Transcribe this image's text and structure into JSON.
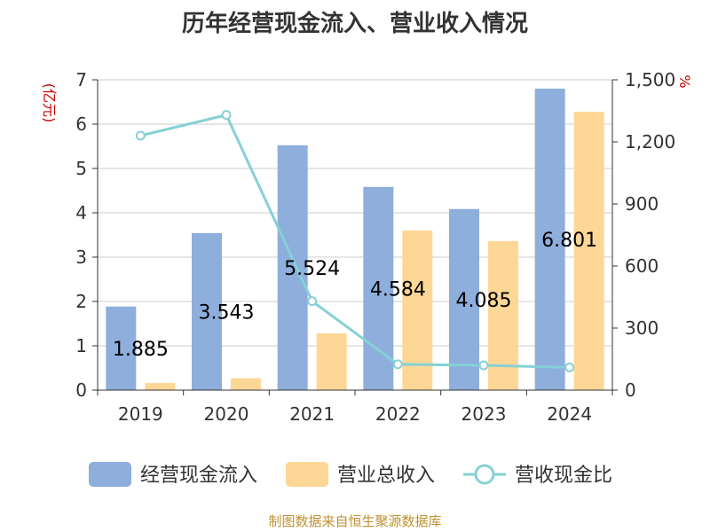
{
  "chart_data": {
    "type": "bar",
    "title": "历年经营现金流入、营业收入情况",
    "categories": [
      "2019",
      "2020",
      "2021",
      "2022",
      "2023",
      "2024"
    ],
    "series": [
      {
        "name": "经营现金流入",
        "type": "bar",
        "axis": "left",
        "color": "#8eaedc",
        "values": [
          1.885,
          3.543,
          5.524,
          4.584,
          4.085,
          6.801
        ],
        "data_labels": [
          "1.885",
          "3.543",
          "5.524",
          "4.584",
          "4.085",
          "6.801"
        ]
      },
      {
        "name": "营业总收入",
        "type": "bar",
        "axis": "left",
        "color": "#fdd795",
        "values": [
          0.16,
          0.27,
          1.28,
          3.6,
          3.36,
          6.28
        ]
      },
      {
        "name": "营收现金比",
        "type": "line",
        "axis": "right",
        "color": "#86d1d6",
        "values": [
          1230,
          1330,
          430,
          125,
          120,
          110
        ]
      }
    ],
    "y_left": {
      "unit_label": "(亿元)",
      "min": 0,
      "max": 7,
      "ticks": [
        "0",
        "1",
        "2",
        "3",
        "4",
        "5",
        "6",
        "7"
      ]
    },
    "y_right": {
      "unit_label": "%",
      "min": 0,
      "max": 1500,
      "ticks": [
        "0",
        "300",
        "600",
        "900",
        "1,200",
        "1,500"
      ]
    },
    "grid": true,
    "legend_position": "bottom"
  },
  "footer": {
    "source": "制图数据来自恒生聚源数据库"
  }
}
